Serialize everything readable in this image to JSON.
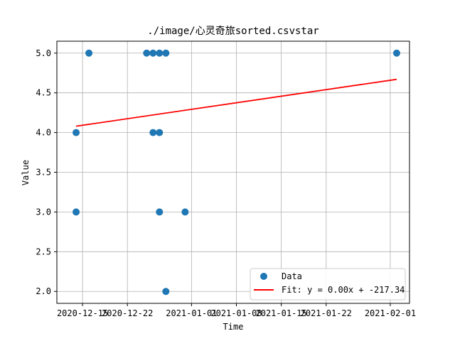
{
  "chart_data": {
    "type": "scatter",
    "title": "./image/心灵奇旅sorted.csvstar",
    "xlabel": "Time",
    "ylabel": "Value",
    "xlim": [
      "2020-12-11",
      "2021-02-04"
    ],
    "ylim": [
      1.85,
      5.15
    ],
    "x_ticks": [
      "2020-12-15",
      "2020-12-22",
      "2021-01-01",
      "2021-01-08",
      "2021-01-15",
      "2021-01-22",
      "2021-02-01"
    ],
    "y_ticks": [
      "2.0",
      "2.5",
      "3.0",
      "3.5",
      "4.0",
      "4.5",
      "5.0"
    ],
    "grid": true,
    "legend_position": "lower-right",
    "series": [
      {
        "name": "Data",
        "kind": "scatter",
        "color": "#1f77b4",
        "points": [
          {
            "x": "2020-12-14",
            "y": 4.0
          },
          {
            "x": "2020-12-14",
            "y": 3.0
          },
          {
            "x": "2020-12-16",
            "y": 5.0
          },
          {
            "x": "2020-12-25",
            "y": 5.0
          },
          {
            "x": "2020-12-26",
            "y": 5.0
          },
          {
            "x": "2020-12-26",
            "y": 4.0
          },
          {
            "x": "2020-12-27",
            "y": 4.0
          },
          {
            "x": "2020-12-27",
            "y": 5.0
          },
          {
            "x": "2020-12-27",
            "y": 3.0
          },
          {
            "x": "2020-12-28",
            "y": 2.0
          },
          {
            "x": "2020-12-28",
            "y": 5.0
          },
          {
            "x": "2020-12-31",
            "y": 3.0
          },
          {
            "x": "2021-02-02",
            "y": 5.0
          }
        ]
      },
      {
        "name": "Fit: y = 0.00x + -217.34",
        "kind": "line",
        "color": "#ff0000",
        "points": [
          {
            "x": "2020-12-14",
            "y": 4.08
          },
          {
            "x": "2021-02-02",
            "y": 4.67
          }
        ]
      }
    ]
  }
}
